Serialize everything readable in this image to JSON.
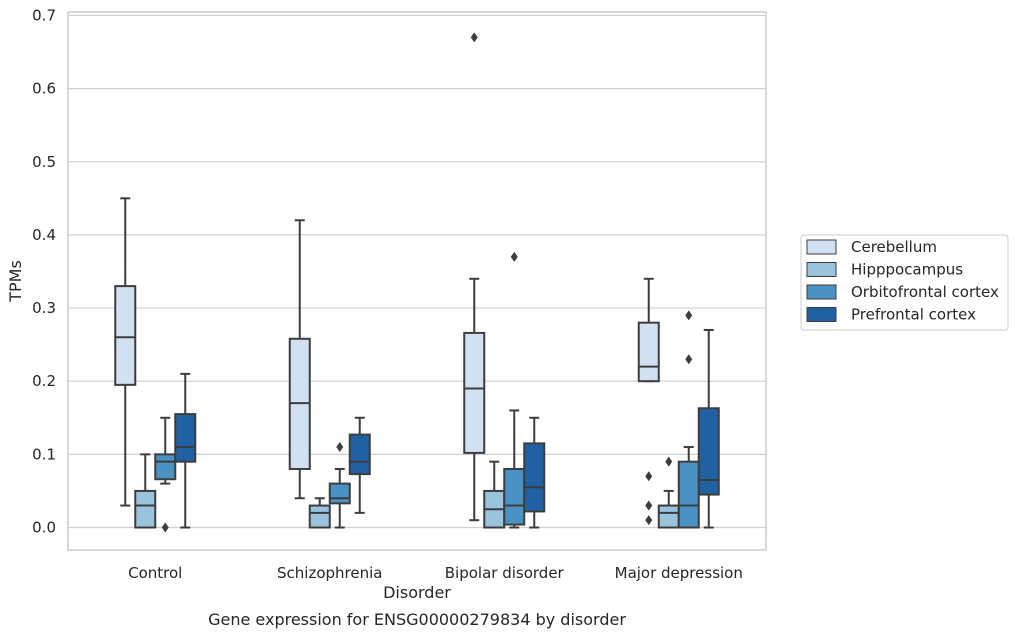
{
  "chart_data": {
    "type": "box",
    "xlabel": "Disorder",
    "ylabel": "TPMs",
    "caption": "Gene expression for ENSG00000279834 by disorder",
    "ylim": [
      -0.032,
      0.705
    ],
    "yticks": [
      "0.0",
      "0.1",
      "0.2",
      "0.3",
      "0.4",
      "0.5",
      "0.6",
      "0.7"
    ],
    "grid": true,
    "legend_position": "right-center",
    "categories": [
      "Control",
      "Schizophrenia",
      "Bipolar disorder",
      "Major depression"
    ],
    "series": [
      {
        "name": "Cerebellum",
        "color": "#d2e1f1",
        "boxes": [
          {
            "whislo": 0.03,
            "q1": 0.195,
            "med": 0.26,
            "q3": 0.33,
            "whishi": 0.45,
            "fliers": []
          },
          {
            "whislo": 0.04,
            "q1": 0.08,
            "med": 0.17,
            "q3": 0.258,
            "whishi": 0.42,
            "fliers": []
          },
          {
            "whislo": 0.01,
            "q1": 0.102,
            "med": 0.19,
            "q3": 0.266,
            "whishi": 0.34,
            "fliers": [
              0.67
            ]
          },
          {
            "whislo": 0.2,
            "q1": 0.2,
            "med": 0.22,
            "q3": 0.28,
            "whishi": 0.34,
            "fliers": [
              0.07,
              0.03,
              0.01
            ]
          }
        ]
      },
      {
        "name": "Hipppocampus",
        "color": "#9ac4de",
        "boxes": [
          {
            "whislo": 0.0,
            "q1": 0.0,
            "med": 0.03,
            "q3": 0.05,
            "whishi": 0.1,
            "fliers": []
          },
          {
            "whislo": 0.0,
            "q1": 0.0,
            "med": 0.02,
            "q3": 0.03,
            "whishi": 0.04,
            "fliers": []
          },
          {
            "whislo": 0.0,
            "q1": 0.0,
            "med": 0.025,
            "q3": 0.05,
            "whishi": 0.09,
            "fliers": []
          },
          {
            "whislo": 0.0,
            "q1": 0.0,
            "med": 0.02,
            "q3": 0.03,
            "whishi": 0.05,
            "fliers": [
              0.09
            ]
          }
        ]
      },
      {
        "name": "Orbitofrontal cortex",
        "color": "#4b92c4",
        "boxes": [
          {
            "whislo": 0.06,
            "q1": 0.066,
            "med": 0.09,
            "q3": 0.1,
            "whishi": 0.15,
            "fliers": [
              0.0
            ]
          },
          {
            "whislo": 0.0,
            "q1": 0.033,
            "med": 0.04,
            "q3": 0.06,
            "whishi": 0.08,
            "fliers": [
              0.11
            ]
          },
          {
            "whislo": 0.0,
            "q1": 0.004,
            "med": 0.03,
            "q3": 0.08,
            "whishi": 0.16,
            "fliers": [
              0.37
            ]
          },
          {
            "whislo": 0.0,
            "q1": 0.0,
            "med": 0.03,
            "q3": 0.09,
            "whishi": 0.11,
            "fliers": [
              0.29,
              0.23
            ]
          }
        ]
      },
      {
        "name": "Prefrontal cortex",
        "color": "#2061a4",
        "boxes": [
          {
            "whislo": 0.0,
            "q1": 0.09,
            "med": 0.11,
            "q3": 0.155,
            "whishi": 0.21,
            "fliers": []
          },
          {
            "whislo": 0.02,
            "q1": 0.073,
            "med": 0.09,
            "q3": 0.127,
            "whishi": 0.15,
            "fliers": []
          },
          {
            "whislo": 0.0,
            "q1": 0.022,
            "med": 0.055,
            "q3": 0.115,
            "whishi": 0.15,
            "fliers": []
          },
          {
            "whislo": 0.0,
            "q1": 0.045,
            "med": 0.065,
            "q3": 0.163,
            "whishi": 0.27,
            "fliers": []
          }
        ]
      }
    ]
  }
}
